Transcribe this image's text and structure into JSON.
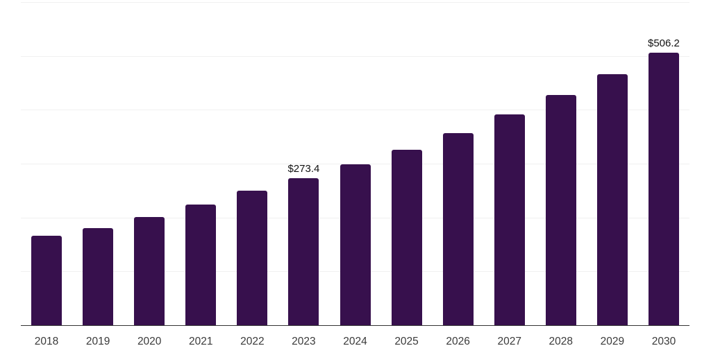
{
  "chart_data": {
    "type": "bar",
    "categories": [
      "2018",
      "2019",
      "2020",
      "2021",
      "2022",
      "2023",
      "2024",
      "2025",
      "2026",
      "2027",
      "2028",
      "2029",
      "2030"
    ],
    "values": [
      165.9,
      180.9,
      201.3,
      224.4,
      250.0,
      273.4,
      298.1,
      325.9,
      357.3,
      391.2,
      427.1,
      465.5,
      506.2
    ],
    "data_labels": [
      {
        "index": 5,
        "text": "$273.4"
      },
      {
        "index": 12,
        "text": "$506.2"
      }
    ],
    "ylim": [
      0,
      600
    ],
    "gridline_step": 100,
    "grid": true,
    "legend": "none",
    "y_tick_labels_visible": false,
    "bar_color": "#37104D",
    "gridline_color": "#f0f0f0",
    "axis_line_color": "#333333",
    "value_label_color": "#111111",
    "tick_label_color": "#3a3a3a",
    "background": "#ffffff"
  }
}
